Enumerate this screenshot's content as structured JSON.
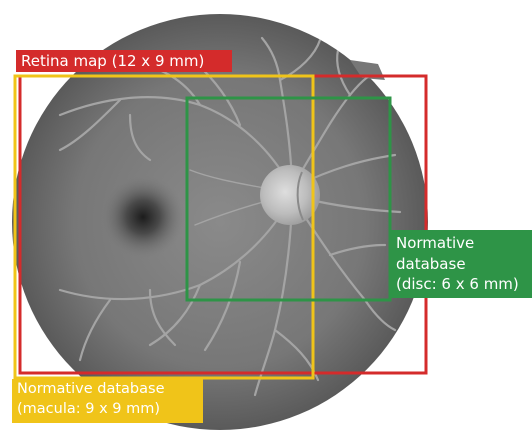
{
  "labels": {
    "retina_map": "Retina map (12 x 9 mm)",
    "disc_line1": "Normative",
    "disc_line2": "database",
    "disc_line3": "(disc: 6 x 6 mm)",
    "macula_line1": "Normative database",
    "macula_line2": "(macula: 9 x 9 mm)"
  },
  "colors": {
    "retina_map": "#d42b2b",
    "disc_database": "#2e9447",
    "macula_database": "#f0c419"
  }
}
